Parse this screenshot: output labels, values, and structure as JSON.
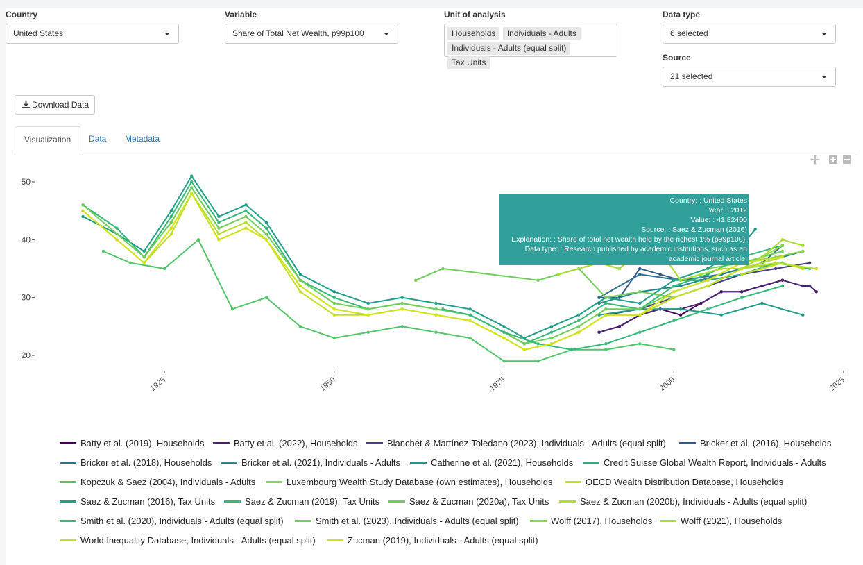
{
  "filters": {
    "country": {
      "label": "Country",
      "value": "United States"
    },
    "variable": {
      "label": "Variable",
      "value": "Share of Total Net Wealth, p99p100"
    },
    "unit": {
      "label": "Unit of analysis",
      "chips": [
        "Households",
        "Individuals - Adults",
        "Individuals - Adults (equal split)",
        "Tax Units"
      ]
    },
    "datatype": {
      "label": "Data type",
      "value": "6 selected"
    },
    "source": {
      "label": "Source",
      "value": "21 selected"
    }
  },
  "download_label": "Download Data",
  "tabs": [
    "Visualization",
    "Data",
    "Metadata"
  ],
  "modebar": [
    "pan-icon",
    "zoom-in-icon",
    "zoom-out-icon"
  ],
  "tooltip": {
    "lines": [
      "Country: :  United States",
      "Year: :  2012",
      "Value: :  41.82400",
      "Source: :  Saez & Zucman (2016)",
      "Explanation: :  Share of total net wealth held by the richest 1% (p99p100).",
      "Data type: :  Research published by academic institutions, such as an",
      "academic journal article."
    ]
  },
  "chart_data": {
    "type": "line",
    "xlabel": "",
    "ylabel": "",
    "xlim": [
      1911,
      2025
    ],
    "ylim": [
      18,
      52
    ],
    "xticks": [
      1925,
      1950,
      1975,
      2000,
      2025
    ],
    "yticks": [
      20,
      30,
      40,
      50
    ],
    "grid": false,
    "legend_position": "bottom",
    "series": [
      {
        "name": "Batty et al. (2019), Households",
        "color": "#440154",
        "x": [
          1989,
          1992,
          1995,
          1998,
          2001,
          2004,
          2007,
          2010,
          2013,
          2016
        ],
        "y": [
          24,
          25,
          27,
          28,
          27,
          29,
          31,
          31,
          32,
          33
        ]
      },
      {
        "name": "Batty et al. (2022), Households",
        "color": "#482173",
        "x": [
          1989,
          1992,
          1995,
          1998,
          2001,
          2004,
          2007,
          2010,
          2013,
          2016,
          2019,
          2020,
          2021
        ],
        "y": [
          24,
          25,
          27,
          28,
          28,
          29,
          31,
          31,
          32,
          33,
          32,
          32,
          31
        ]
      },
      {
        "name": "Blanchet & Martínez-Toledano (2023), Individuals - Adults (equal split)",
        "color": "#433e85",
        "x": [
          1990,
          1995,
          2000,
          2005,
          2010,
          2015,
          2020
        ],
        "y": [
          27,
          28,
          30,
          32,
          34,
          35,
          36
        ]
      },
      {
        "name": "Bricker et al. (2016), Households",
        "color": "#38598c",
        "x": [
          1989,
          1992,
          1995,
          1998,
          2001,
          2004,
          2007,
          2010,
          2013
        ],
        "y": [
          30,
          30,
          35,
          34,
          33,
          33,
          34,
          35,
          36
        ]
      },
      {
        "name": "Bricker et al. (2018), Households",
        "color": "#2d708e",
        "x": [
          1989,
          1995,
          2001,
          2007,
          2013,
          2016
        ],
        "y": [
          30,
          34,
          33,
          34,
          36,
          39
        ]
      },
      {
        "name": "Bricker et al. (2021), Individuals - Adults",
        "color": "#25858e",
        "x": [
          1989,
          1995,
          2001,
          2007,
          2013,
          2019
        ],
        "y": [
          29,
          31,
          32,
          34,
          36,
          38
        ]
      },
      {
        "name": "Catherine et al. (2021), Households",
        "color": "#1e9b8a",
        "x": [
          1989,
          1995,
          2001,
          2007,
          2013,
          2019
        ],
        "y": [
          27,
          28,
          28,
          27,
          29,
          27
        ]
      },
      {
        "name": "Credit Suisse Global Wealth Report, Individuals - Adults",
        "color": "#2ab07f",
        "x": [
          2000,
          2005,
          2010,
          2015,
          2020
        ],
        "y": [
          33,
          33,
          34,
          36,
          35
        ]
      },
      {
        "name": "Kopczuk & Saez (2004), Individuals - Adults",
        "color": "#52c569",
        "x": [
          1916,
          1920,
          1925,
          1930,
          1935,
          1940,
          1945,
          1950,
          1955,
          1960,
          1965,
          1970,
          1975,
          1980,
          1985,
          1990,
          1995,
          2000
        ],
        "y": [
          38,
          36,
          35,
          40,
          28,
          30,
          25,
          23,
          24,
          25,
          24,
          23,
          19,
          19,
          21,
          21,
          22,
          21
        ]
      },
      {
        "name": "Luxembourg Wealth Study Database (own estimates), Households",
        "color": "#86d549",
        "x": [
          2000,
          2005,
          2010,
          2015,
          2019
        ],
        "y": [
          33,
          35,
          36,
          37,
          38
        ]
      },
      {
        "name": "OECD Wealth Distribution Database, Households",
        "color": "#c2df23",
        "x": [
          2010,
          2013,
          2016,
          2019
        ],
        "y": [
          34,
          35,
          36,
          35
        ]
      },
      {
        "name": "Saez & Zucman (2016), Tax Units",
        "color": "#1f9e89",
        "x": [
          1913,
          1918,
          1922,
          1926,
          1929,
          1933,
          1937,
          1940,
          1945,
          1950,
          1955,
          1960,
          1965,
          1970,
          1975,
          1978,
          1982,
          1986,
          1990,
          1995,
          2000,
          2005,
          2010,
          2012
        ],
        "y": [
          44,
          41,
          38,
          45,
          51,
          44,
          46,
          43,
          34,
          31,
          29,
          30,
          29,
          28,
          25,
          23,
          25,
          27,
          30,
          29,
          33,
          35,
          39,
          41.8
        ]
      },
      {
        "name": "Saez & Zucman (2019), Tax Units",
        "color": "#35b779",
        "x": [
          1913,
          1918,
          1922,
          1926,
          1929,
          1933,
          1937,
          1940,
          1945,
          1950,
          1955,
          1960,
          1965,
          1970,
          1975,
          1978,
          1982,
          1986,
          1990,
          1995,
          2000,
          2005,
          2010,
          2016
        ],
        "y": [
          46,
          42,
          37,
          44,
          50,
          43,
          45,
          42,
          33,
          30,
          28,
          29,
          28,
          27,
          24,
          22,
          24,
          26,
          29,
          28,
          32,
          34,
          37,
          39
        ]
      },
      {
        "name": "Saez & Zucman (2020a), Tax Units",
        "color": "#6ece58",
        "x": [
          1913,
          1918,
          1922,
          1926,
          1929,
          1933,
          1937,
          1940,
          1945,
          1950,
          1955,
          1960,
          1965,
          1970,
          1975,
          1978,
          1982,
          1986,
          1990,
          1995,
          2000,
          2005,
          2010,
          2016
        ],
        "y": [
          46,
          41,
          37,
          43,
          49,
          42,
          44,
          41,
          33,
          29,
          28,
          29,
          28,
          27,
          24,
          22,
          23,
          25,
          28,
          28,
          31,
          33,
          36,
          38
        ]
      },
      {
        "name": "Saez & Zucman (2020b), Individuals - Adults (equal split)",
        "color": "#b5de2b",
        "x": [
          1913,
          1918,
          1922,
          1926,
          1929,
          1933,
          1937,
          1940,
          1945,
          1950,
          1955,
          1960,
          1965,
          1970,
          1975,
          1978,
          1982,
          1986,
          1990,
          1995,
          2000,
          2005,
          2010,
          2016
        ],
        "y": [
          45,
          40,
          36,
          42,
          48,
          41,
          43,
          40,
          32,
          28,
          27,
          28,
          27,
          26,
          23,
          21,
          22,
          24,
          27,
          27,
          30,
          32,
          35,
          37
        ]
      },
      {
        "name": "Smith et al. (2020), Individuals - Adults (equal split)",
        "color": "#35b779",
        "x": [
          1966,
          1970,
          1975,
          1980,
          1985,
          1990,
          1995,
          2000,
          2005,
          2010,
          2016
        ],
        "y": [
          28,
          27,
          24,
          22,
          21,
          22,
          24,
          26,
          28,
          30,
          32
        ]
      },
      {
        "name": "Smith et al. (2023), Individuals - Adults (equal split)",
        "color": "#6ece58",
        "x": [
          1962,
          1966,
          1980,
          1986,
          1990,
          1995,
          2000,
          2005,
          2010,
          2016
        ],
        "y": [
          33,
          35,
          33,
          35,
          30,
          31,
          30,
          32,
          35,
          36
        ]
      },
      {
        "name": "Wolff (2017), Households",
        "color": "#90d743",
        "x": [
          1983,
          1989,
          1992,
          1995,
          1998,
          2001,
          2004,
          2007,
          2010,
          2013,
          2016
        ],
        "y": [
          34,
          36,
          35,
          38,
          38,
          33,
          34,
          35,
          35,
          37,
          39
        ]
      },
      {
        "name": "Wolff (2021), Households",
        "color": "#a8db34",
        "x": [
          1983,
          1989,
          1992,
          1995,
          1998,
          2001,
          2004,
          2007,
          2010,
          2013,
          2016,
          2019
        ],
        "y": [
          34,
          36,
          35,
          38,
          38,
          33,
          34,
          35,
          35,
          37,
          40,
          39
        ]
      },
      {
        "name": "World Inequality Database, Individuals - Adults (equal split)",
        "color": "#c2df23",
        "x": [
          1913,
          1918,
          1922,
          1926,
          1929,
          1933,
          1937,
          1940,
          1945,
          1950,
          1955,
          1960,
          1965,
          1970,
          1975,
          1978,
          1982,
          1986,
          1990,
          1995,
          2000,
          2005,
          2010,
          2015,
          2021
        ],
        "y": [
          45,
          40,
          36,
          41,
          48,
          40,
          42,
          40,
          31,
          27,
          27,
          28,
          27,
          26,
          23,
          21,
          22,
          24,
          27,
          27,
          30,
          32,
          35,
          36,
          35
        ]
      },
      {
        "name": "Zucman (2019), Individuals - Adults (equal split)",
        "color": "#d2e21b",
        "x": [
          1913,
          1918,
          1922,
          1926,
          1929,
          1933,
          1937,
          1940,
          1945,
          1950,
          1955,
          1960,
          1965,
          1970,
          1975,
          1978,
          1982,
          1986,
          1990,
          1995,
          2000,
          2005,
          2010,
          2016
        ],
        "y": [
          45,
          40,
          36,
          42,
          48,
          40,
          42,
          40,
          32,
          28,
          27,
          28,
          27,
          26,
          23,
          21,
          22,
          24,
          27,
          27,
          31,
          33,
          36,
          37
        ]
      }
    ]
  }
}
